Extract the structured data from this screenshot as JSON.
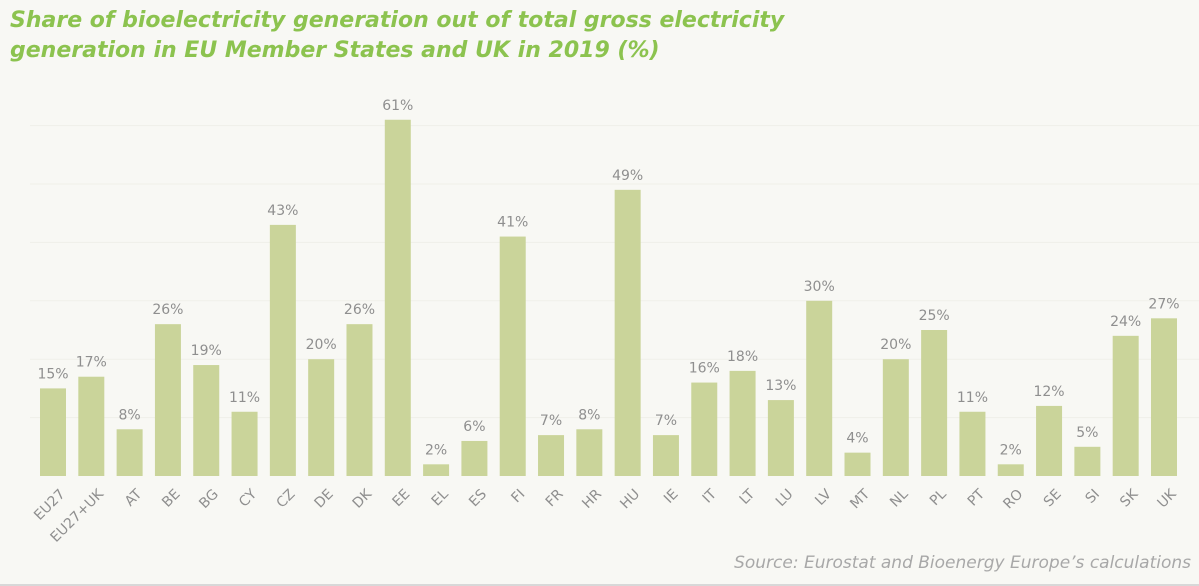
{
  "title_lines": [
    "Share of bioelectricity generation out of total gross electricity",
    "generation in EU Member States and UK in 2019 (%)"
  ],
  "source": "Source: Eurostat and Bioenergy Europe’s calculations",
  "colors": {
    "title": "#8cc34f",
    "bar": "#cad49a",
    "label": "#8f8f8f",
    "grid": "#efefe9",
    "background": "#f8f8f4"
  },
  "chart_data": {
    "type": "bar",
    "title": "Share of bioelectricity generation out of total gross electricity generation in EU Member States and UK in 2019 (%)",
    "xlabel": "",
    "ylabel": "",
    "ylim": [
      0,
      60
    ],
    "grid": true,
    "legend": "none",
    "value_suffix": "%",
    "categories": [
      "EU27",
      "EU27+UK",
      "AT",
      "BE",
      "BG",
      "CY",
      "CZ",
      "DE",
      "DK",
      "EE",
      "EL",
      "ES",
      "FI",
      "FR",
      "HR",
      "HU",
      "IE",
      "IT",
      "LT",
      "LU",
      "LV",
      "MT",
      "NL",
      "PL",
      "PT",
      "RO",
      "SE",
      "SI",
      "SK",
      "UK"
    ],
    "values": [
      15,
      17,
      8,
      26,
      19,
      11,
      43,
      20,
      26,
      61,
      2,
      6,
      41,
      7,
      8,
      49,
      7,
      16,
      18,
      13,
      30,
      4,
      20,
      25,
      11,
      2,
      12,
      5,
      24,
      27
    ],
    "data_labels": [
      "15%",
      "17%",
      "8%",
      "26%",
      "19%",
      "11%",
      "43%",
      "20%",
      "26%",
      "61%",
      "2%",
      "6%",
      "41%",
      "7%",
      "8%",
      "49%",
      "7%",
      "16%",
      "18%",
      "13%",
      "30%",
      "4%",
      "20%",
      "25%",
      "11%",
      "2%",
      "12%",
      "5%",
      "24%",
      "27%"
    ],
    "source": "Source: Eurostat and Bioenergy Europe’s calculations"
  }
}
